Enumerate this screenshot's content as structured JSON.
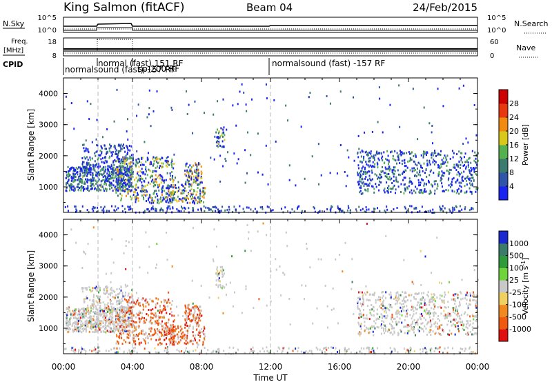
{
  "header": {
    "station": "King Salmon (fitACF)",
    "beam": "Beam 04",
    "date": "24/Feb/2015"
  },
  "top_panels": {
    "nsky_label": "N.Sky",
    "nsearch_label": "N.Search",
    "freq_label_1": "Freq.",
    "freq_label_2": "[MHz]",
    "nave_label": "Nave",
    "cpid_label": "CPID",
    "nsky_ticks": [
      "10^5",
      "10^0"
    ],
    "nsearch_ticks": [
      "10^5",
      "10^0"
    ],
    "freq_ticks": [
      "18",
      "8"
    ],
    "nave_ticks": [
      "60",
      "0"
    ],
    "cpid_texts": [
      "normal (fast) 151 RF",
      "normalsound (fast)-157 RF",
      "normalsound (fast) -157 RF",
      "sp-200 RF"
    ]
  },
  "chart_data": [
    {
      "type": "heatmap",
      "title": "",
      "xlabel": "",
      "ylabel": "Slant Range [km]",
      "x_range_hours": [
        0,
        24
      ],
      "ylim": [
        180,
        4500
      ],
      "yticks": [
        1000,
        2000,
        3000,
        4000
      ],
      "colorbar": {
        "label": "Power [dB]",
        "ticks": [
          4,
          8,
          12,
          16,
          20,
          24,
          28
        ],
        "colors": [
          "#1a24f0",
          "#2f54a8",
          "#3b7a6f",
          "#55b04f",
          "#d8c81a",
          "#f08a10",
          "#e83810",
          "#cc0000"
        ]
      }
    },
    {
      "type": "heatmap",
      "title": "",
      "xlabel": "Time UT",
      "ylabel": "Slant Range [km]",
      "x_range_hours": [
        0,
        24
      ],
      "ylim": [
        180,
        4500
      ],
      "yticks": [
        1000,
        2000,
        3000,
        4000
      ],
      "xtick_labels": [
        "00:00",
        "04:00",
        "08:00",
        "12:00",
        "16:00",
        "20:00",
        "00:00"
      ],
      "colorbar": {
        "label": "Velocity [m s",
        "label_sup": "-1",
        "label_end": "]",
        "ticks": [
          1000,
          500,
          100,
          25,
          -25,
          -100,
          -500,
          -1000
        ],
        "colors": [
          "#1a2ad0",
          "#3c7b6a",
          "#2f9a3a",
          "#6fd43a",
          "#c8c8c8",
          "#f0d060",
          "#f08a20",
          "#f05a10",
          "#e01010"
        ]
      }
    }
  ]
}
